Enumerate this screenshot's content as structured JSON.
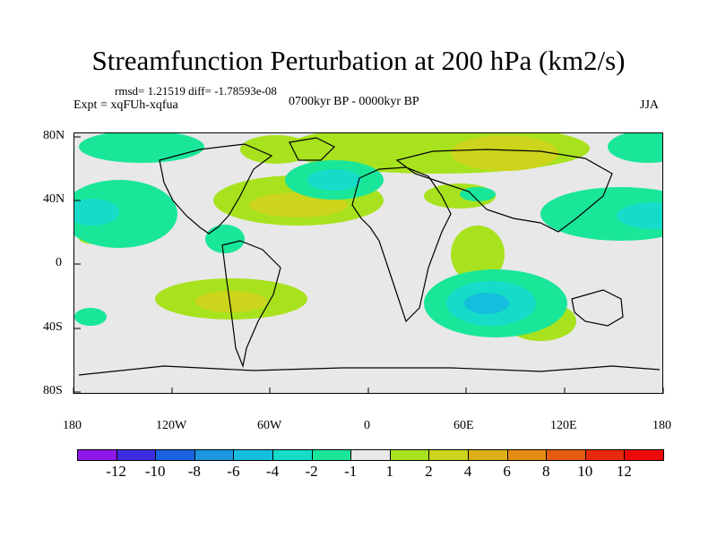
{
  "title": "Streamfunction Perturbation at 200 hPa (km2/s)",
  "stats": "rmsd= 1.21519 diff= -1.78593e-08",
  "experiment": "Expt = xqFUh-xqfua",
  "period": "0700kyr BP - 0000kyr BP",
  "season": "JJA",
  "lat_labels": [
    "80N",
    "40N",
    "0",
    "40S",
    "80S"
  ],
  "lon_labels": [
    "180",
    "120W",
    "60W",
    "0",
    "60E",
    "120E",
    "180"
  ],
  "colorbar": {
    "labels": [
      "-12",
      "-10",
      "-8",
      "-6",
      "-4",
      "-2",
      "-1",
      "1",
      "2",
      "4",
      "6",
      "8",
      "10",
      "12"
    ],
    "colors": [
      "#8f18e8",
      "#3c2ee0",
      "#1a64e4",
      "#1c96e0",
      "#16bede",
      "#14dcc8",
      "#1ae69a",
      "#e8e8e8",
      "#a8e21e",
      "#ccd41c",
      "#dcb016",
      "#e48c12",
      "#e65c10",
      "#e82a0c",
      "#ee0a0a"
    ]
  }
}
